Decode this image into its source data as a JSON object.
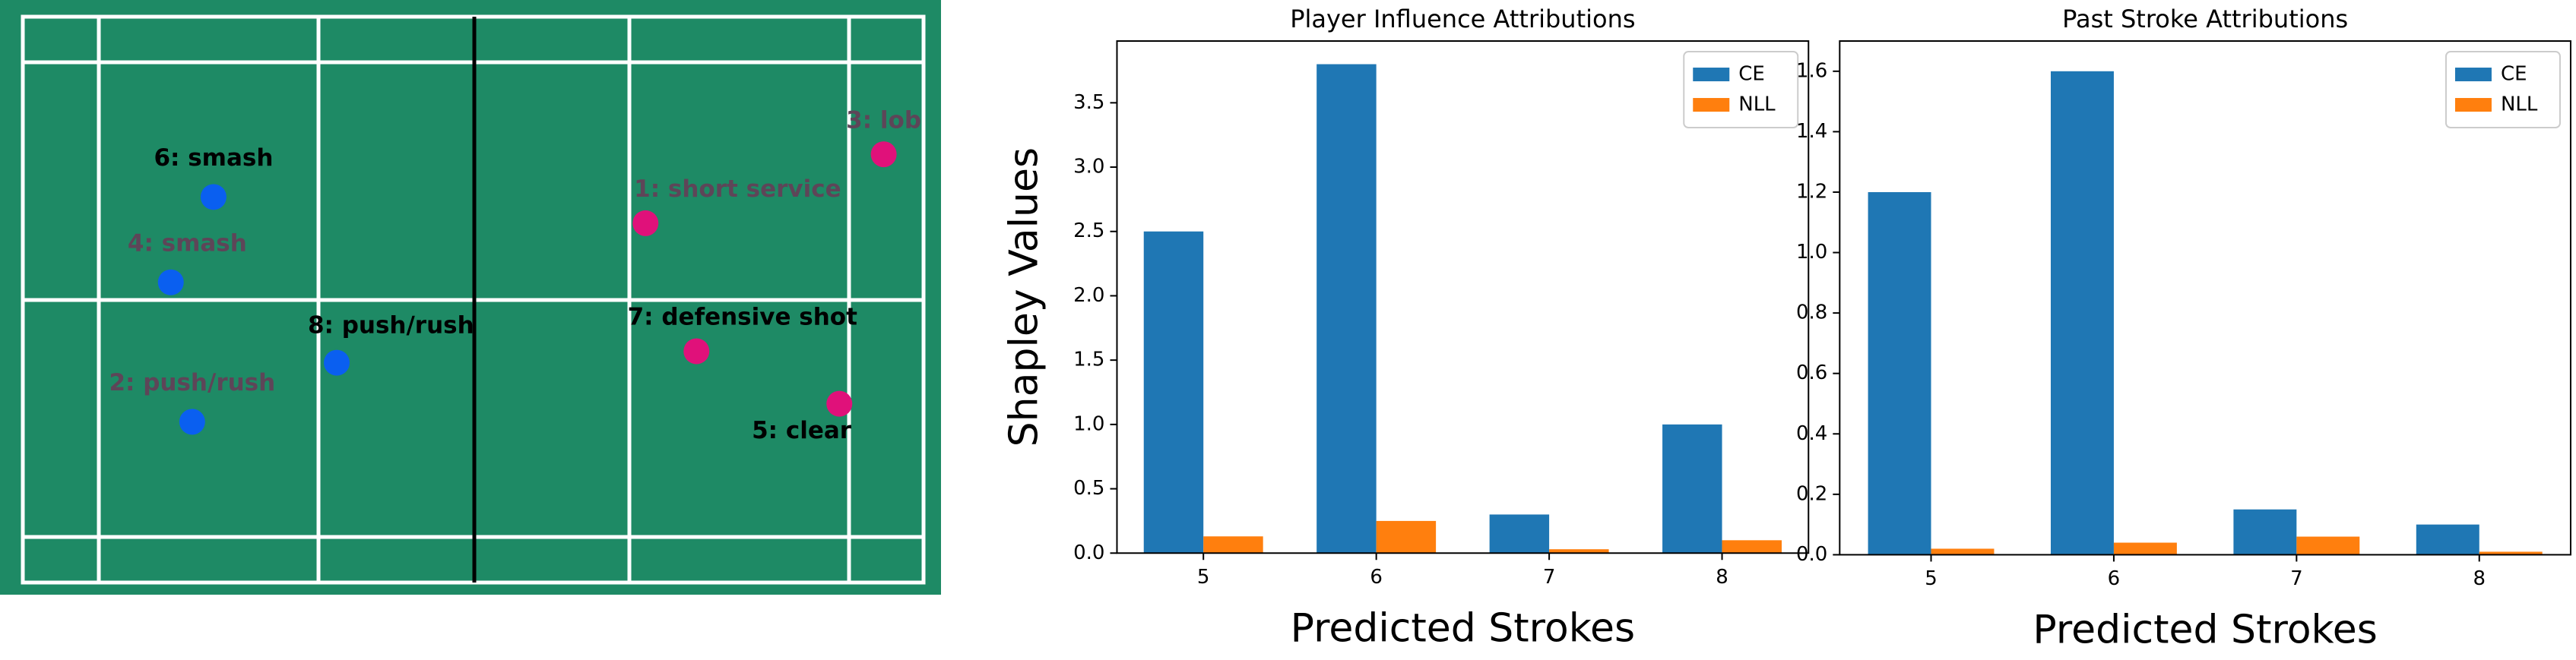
{
  "court": {
    "strokes": [
      "1: short service",
      "2: push/rush",
      "3: lob",
      "4: smash",
      "5: clear",
      "6: smash",
      "7: defensive shot",
      "8: push/rush"
    ]
  },
  "chart_data": [
    {
      "type": "bar",
      "title": "Player Influence Attributions",
      "xlabel": "Predicted Strokes",
      "ylabel": "Shapley Values",
      "categories": [
        "5",
        "6",
        "7",
        "8"
      ],
      "series": [
        {
          "name": "CE",
          "color": "#1f77b4",
          "values": [
            2.5,
            3.8,
            0.3,
            1.0
          ]
        },
        {
          "name": "NLL",
          "color": "#ff7f0e",
          "values": [
            0.13,
            0.25,
            0.03,
            0.1
          ]
        }
      ],
      "ylim": [
        0,
        3.98
      ],
      "yticks": [
        {
          "value": 0,
          "label": "0.0"
        },
        0.5,
        {
          "value": 1,
          "label": "1.0"
        },
        1.5,
        {
          "value": 2,
          "label": "2.0"
        },
        2.5,
        {
          "value": 3,
          "label": "3.0"
        },
        3.5
      ],
      "legend": "upper right"
    },
    {
      "type": "bar",
      "title": "Past Stroke Attributions",
      "xlabel": "Predicted Strokes",
      "categories": [
        "5",
        "6",
        "7",
        "8"
      ],
      "series": [
        {
          "name": "CE",
          "color": "#1f77b4",
          "values": [
            1.2,
            1.6,
            0.15,
            0.1
          ]
        },
        {
          "name": "NLL",
          "color": "#ff7f0e",
          "values": [
            0.02,
            0.04,
            0.06,
            0.01
          ]
        }
      ],
      "ylim": [
        0,
        1.7
      ],
      "yticks": [
        {
          "value": 0,
          "label": "0.0"
        },
        0.2,
        0.4,
        0.6,
        0.8,
        {
          "value": 1,
          "label": "1.0"
        },
        1.2,
        1.4,
        1.6
      ],
      "legend": "upper right"
    }
  ]
}
